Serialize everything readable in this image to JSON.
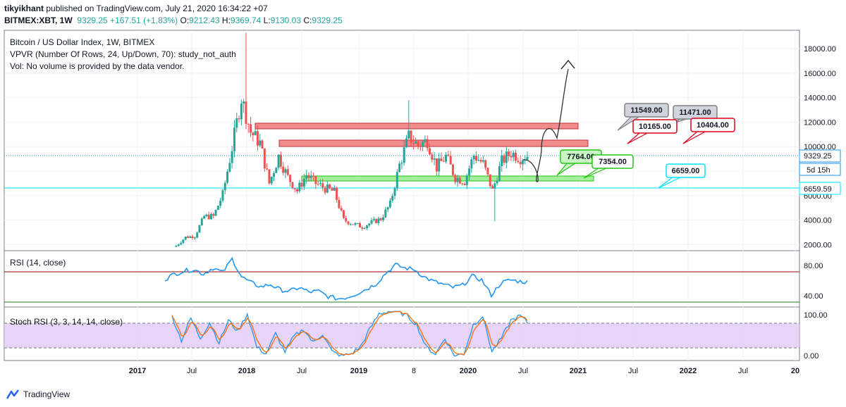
{
  "header": {
    "author": "tikyikhant",
    "published": "published on TradingView.com, July 21, 2020 16:34:22 +07",
    "symbol": "BITMEX:XBT, 1W",
    "last": "9329.25",
    "change": "+167.51 (+1.83%)",
    "o_label": "O:",
    "o_value": "9212.43",
    "h_label": "H:",
    "h_value": "9369.74",
    "l_label": "L:",
    "l_value": "9130.03",
    "c_label": "C:",
    "c_value": "9329.25"
  },
  "legend": {
    "title": "Bitcoin / US Dollar Index, 1W, BITMEX",
    "vpvr": "VPVR (Number Of Rows, 24, Up/Down, 70): study_not_auth",
    "vol": "Vol: No volume is provided by the data vendor.",
    "rsi": "RSI (14, close)",
    "stoch": "Stoch RSI (3, 3, 14, 14, close)"
  },
  "price_axis": {
    "ticks": [
      "18000.00",
      "16000.00",
      "14000.00",
      "12000.00",
      "10000.00",
      "8000.00",
      "6000.00",
      "4000.00",
      "2000.00"
    ],
    "current_price": "9329.25",
    "countdown": "5d 15h",
    "line_price": "6659.59"
  },
  "rsi_axis": {
    "ticks": [
      "80.00",
      "40.00"
    ]
  },
  "stoch_axis": {
    "ticks": [
      "100.00",
      "0.00"
    ]
  },
  "time_axis": {
    "labels": [
      "2017",
      "Jul",
      "2018",
      "Jul",
      "2019",
      "8",
      "2020",
      "Jul",
      "2021",
      "Jul",
      "2022",
      "Jul",
      "20"
    ],
    "bold": [
      true,
      false,
      true,
      false,
      true,
      false,
      true,
      false,
      true,
      false,
      true,
      false,
      true
    ]
  },
  "callouts": [
    {
      "text": "11549.00",
      "color": "#d1d4dc",
      "border": "#808080"
    },
    {
      "text": "11471.00",
      "color": "#d1d4dc",
      "border": "#808080"
    },
    {
      "text": "10165.00",
      "color": "#ffffff",
      "border": "#e0001a"
    },
    {
      "text": "10404.00",
      "color": "#ffffff",
      "border": "#e0001a"
    },
    {
      "text": "7764.00",
      "color": "#c8f7c5",
      "border": "#22c511"
    },
    {
      "text": "7354.00",
      "color": "#ffffff",
      "border": "#22c511"
    },
    {
      "text": "6659.00",
      "color": "#ffffff",
      "border": "#00e5ff"
    }
  ],
  "footer": {
    "brand": "TradingView"
  },
  "colors": {
    "up": "#26a69a",
    "down": "#ef5350",
    "rsi_line": "#2196f3",
    "stoch_k": "#2196f3",
    "stoch_d": "#ff6d00",
    "stoch_band": "#e1c9f5",
    "resistance": "#f28b8b",
    "support": "#a5ef9c",
    "cyan_line": "#00e5ff"
  },
  "chart_data": {
    "type": "candlestick",
    "title": "Bitcoin / US Dollar Index, 1W, BITMEX",
    "ylim": [
      1500,
      19500
    ],
    "y_ticks": [
      2000,
      4000,
      6000,
      8000,
      10000,
      12000,
      14000,
      16000,
      18000
    ],
    "x_labels": [
      "2017",
      "Jul",
      "2018",
      "Jul",
      "2019",
      "8",
      "2020",
      "Jul",
      "2021",
      "Jul",
      "2022",
      "Jul",
      "20"
    ],
    "series": [
      {
        "name": "BITMEX:XBT",
        "x": [
          "2017-05",
          "2017-06",
          "2017-07",
          "2017-08",
          "2017-09",
          "2017-10",
          "2017-11",
          "2017-12",
          "2018-01",
          "2018-02",
          "2018-03",
          "2018-04",
          "2018-05",
          "2018-06",
          "2018-07",
          "2018-08",
          "2018-09",
          "2018-10",
          "2018-11",
          "2018-12",
          "2019-01",
          "2019-02",
          "2019-03",
          "2019-04",
          "2019-05",
          "2019-06",
          "2019-07",
          "2019-08",
          "2019-09",
          "2019-10",
          "2019-11",
          "2019-12",
          "2020-01",
          "2020-02",
          "2020-03",
          "2020-04",
          "2020-05",
          "2020-06",
          "2020-07"
        ],
        "values": [
          1900,
          2600,
          2700,
          4300,
          4300,
          6100,
          9900,
          14000,
          11200,
          10300,
          7000,
          9200,
          7500,
          6400,
          7700,
          7000,
          6600,
          6300,
          4000,
          3700,
          3450,
          3800,
          4100,
          5300,
          8500,
          10800,
          10100,
          10500,
          8300,
          9200,
          7500,
          7200,
          9300,
          8600,
          6400,
          8800,
          9500,
          9100,
          9329
        ]
      },
      {
        "name": "RSI (14, close)",
        "values": [
          57,
          64,
          68,
          70,
          64,
          72,
          66,
          84,
          60,
          52,
          47,
          50,
          43,
          41,
          46,
          40,
          41,
          34,
          31,
          33,
          38,
          44,
          51,
          65,
          76,
          72,
          70,
          60,
          54,
          50,
          46,
          49,
          61,
          56,
          36,
          52,
          56,
          54,
          53
        ]
      },
      {
        "name": "Stoch RSI K",
        "values": [
          90,
          35,
          85,
          40,
          75,
          30,
          80,
          55,
          95,
          20,
          5,
          50,
          10,
          45,
          60,
          30,
          50,
          10,
          0,
          5,
          20,
          60,
          95,
          100,
          100,
          90,
          70,
          20,
          5,
          40,
          0,
          5,
          70,
          90,
          10,
          40,
          80,
          90,
          70
        ]
      }
    ],
    "levels": [
      {
        "label": "11549.00",
        "value": 11549
      },
      {
        "label": "11471.00",
        "value": 11471
      },
      {
        "label": "10165.00",
        "value": 10165
      },
      {
        "label": "10404.00",
        "value": 10404
      },
      {
        "label": "7764.00",
        "value": 7764
      },
      {
        "label": "7354.00",
        "value": 7354
      },
      {
        "label": "6659.00",
        "value": 6659
      }
    ],
    "rsi_levels": [
      70,
      30
    ],
    "rsi_ylim": [
      20,
      95
    ],
    "stoch_levels": [
      80,
      20
    ],
    "stoch_ylim": [
      -10,
      110
    ]
  }
}
